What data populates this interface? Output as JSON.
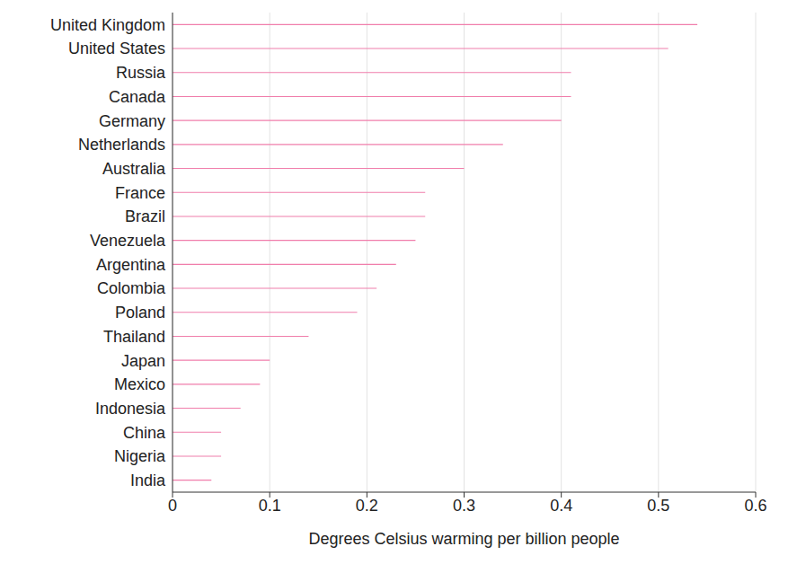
{
  "chart_data": {
    "type": "bar",
    "orientation": "horizontal",
    "x_label": "Degrees Celsius warming per billion people",
    "categories": [
      "United Kingdom",
      "United States",
      "Russia",
      "Canada",
      "Germany",
      "Netherlands",
      "Australia",
      "France",
      "Brazil",
      "Venezuela",
      "Argentina",
      "Colombia",
      "Poland",
      "Thailand",
      "Japan",
      "Mexico",
      "Indonesia",
      "China",
      "Nigeria",
      "India"
    ],
    "values": [
      0.54,
      0.51,
      0.41,
      0.41,
      0.4,
      0.34,
      0.3,
      0.26,
      0.26,
      0.25,
      0.23,
      0.21,
      0.19,
      0.14,
      0.1,
      0.09,
      0.07,
      0.05,
      0.05,
      0.04
    ],
    "color": "#f07eab",
    "xlim": [
      0,
      0.6
    ],
    "xticks": [
      0,
      0.1,
      0.2,
      0.3,
      0.4,
      0.5,
      0.6
    ],
    "grid": true
  }
}
